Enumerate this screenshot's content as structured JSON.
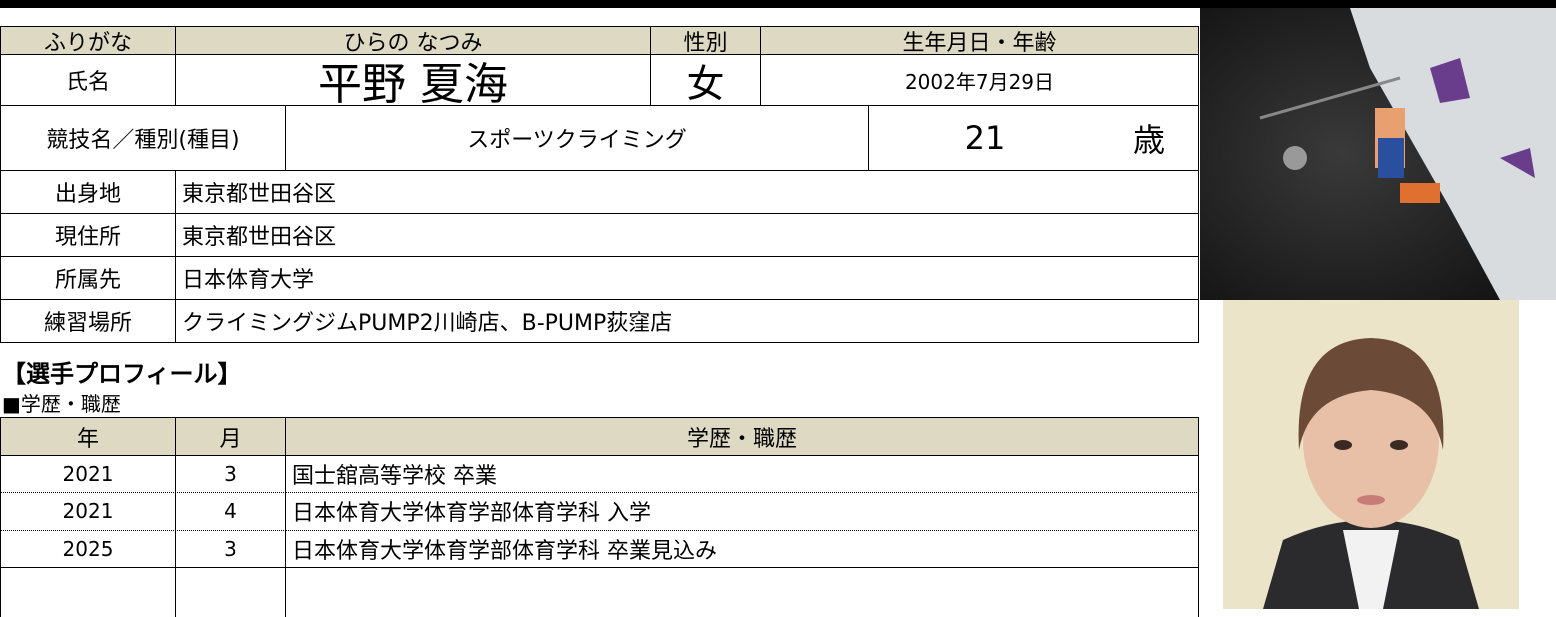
{
  "header": {
    "furigana_label": "ふりがな",
    "furigana": "ひらの なつみ",
    "gender_label": "性別",
    "birth_label": "生年月日・年齢",
    "name_label": "氏名",
    "name": "平野 夏海",
    "gender": "女",
    "birthdate": "2002年7月29日",
    "sport_label": "競技名／種別(種目)",
    "sport": "スポーツクライミング",
    "age": 21,
    "age_unit": "歳"
  },
  "details": [
    {
      "label": "出身地",
      "value": "東京都世田谷区"
    },
    {
      "label": "現住所",
      "value": "東京都世田谷区"
    },
    {
      "label": "所属先",
      "value": "日本体育大学"
    },
    {
      "label": "練習場所",
      "value": "クライミングジムPUMP2川崎店、B-PUMP荻窪店"
    }
  ],
  "profile_title": "【選手プロフィール】",
  "history_title": "■学歴・職歴",
  "history": {
    "columns": [
      "年",
      "月",
      "学歴・職歴"
    ],
    "rows": [
      [
        2021,
        3,
        "国士舘高等学校 卒業"
      ],
      [
        2021,
        4,
        "日本体育大学体育学部体育学科 入学"
      ],
      [
        2025,
        3,
        "日本体育大学体育学部体育学科 卒業見込み"
      ]
    ]
  }
}
